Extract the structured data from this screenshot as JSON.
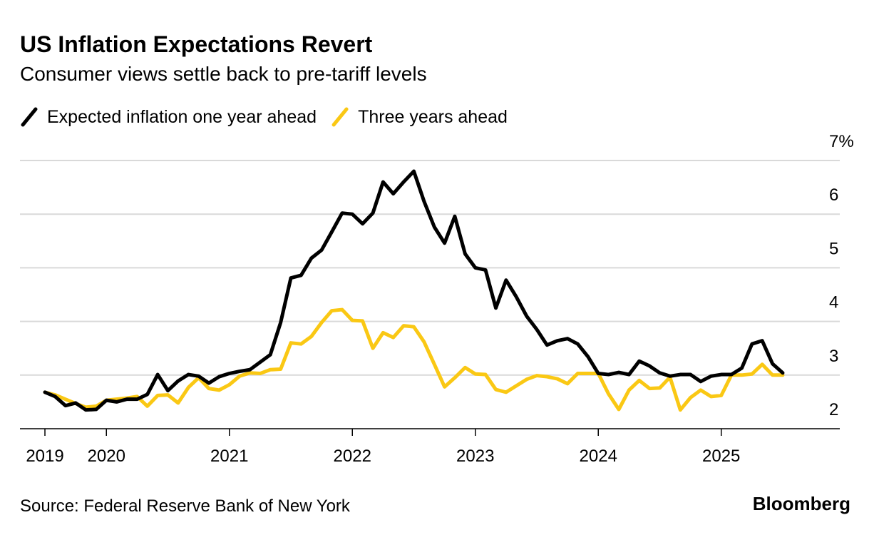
{
  "chart_data": {
    "type": "line",
    "title": "US Inflation Expectations Revert",
    "subtitle": "Consumer views settle back to pre-tariff levels",
    "source": "Source: Federal Reserve Bank of New York",
    "brand": "Bloomberg",
    "x": [
      2019.5,
      2019.583,
      2019.667,
      2019.75,
      2019.833,
      2019.917,
      2020,
      2020.083,
      2020.167,
      2020.25,
      2020.333,
      2020.417,
      2020.5,
      2020.583,
      2020.667,
      2020.75,
      2020.833,
      2020.917,
      2021,
      2021.083,
      2021.167,
      2021.25,
      2021.333,
      2021.417,
      2021.5,
      2021.583,
      2021.667,
      2021.75,
      2021.833,
      2021.917,
      2022,
      2022.083,
      2022.167,
      2022.25,
      2022.333,
      2022.417,
      2022.5,
      2022.583,
      2022.667,
      2022.75,
      2022.833,
      2022.917,
      2023,
      2023.083,
      2023.167,
      2023.25,
      2023.333,
      2023.417,
      2023.5,
      2023.583,
      2023.667,
      2023.75,
      2023.833,
      2023.917,
      2024,
      2024.083,
      2024.167,
      2024.25,
      2024.333,
      2024.417,
      2024.5,
      2024.583,
      2024.667,
      2024.75,
      2024.833,
      2024.917,
      2025,
      2025.083,
      2025.167,
      2025.25,
      2025.333,
      2025.417,
      2025.5
    ],
    "series": [
      {
        "name": "Expected inflation one year ahead",
        "color": "#000000",
        "values": [
          2.68,
          2.6,
          2.43,
          2.48,
          2.35,
          2.36,
          2.53,
          2.5,
          2.55,
          2.55,
          2.64,
          3.01,
          2.71,
          2.89,
          3.01,
          2.98,
          2.85,
          2.97,
          3.03,
          3.07,
          3.1,
          3.24,
          3.38,
          3.98,
          4.81,
          4.86,
          5.18,
          5.33,
          5.67,
          6.02,
          6.0,
          5.82,
          6.02,
          6.6,
          6.38,
          6.6,
          6.8,
          6.24,
          5.76,
          5.46,
          5.96,
          5.26,
          5.0,
          4.96,
          4.25,
          4.77,
          4.46,
          4.1,
          3.85,
          3.56,
          3.64,
          3.68,
          3.58,
          3.34,
          3.03,
          3.01,
          3.05,
          3.01,
          3.26,
          3.17,
          3.04,
          2.98,
          3.01,
          3.01,
          2.88,
          2.98,
          3.01,
          3.01,
          3.13,
          3.58,
          3.64,
          3.21,
          3.04
        ]
      },
      {
        "name": "Three years ahead",
        "color": "#fac814",
        "values": [
          2.68,
          2.63,
          2.55,
          2.47,
          2.4,
          2.42,
          2.53,
          2.55,
          2.57,
          2.6,
          2.42,
          2.62,
          2.63,
          2.48,
          2.77,
          2.95,
          2.75,
          2.72,
          2.82,
          2.98,
          3.04,
          3.03,
          3.1,
          3.11,
          3.6,
          3.58,
          3.72,
          3.98,
          4.2,
          4.22,
          4.02,
          4.01,
          3.5,
          3.79,
          3.7,
          3.92,
          3.9,
          3.62,
          3.2,
          2.78,
          2.95,
          3.14,
          3.02,
          3.01,
          2.73,
          2.68,
          2.8,
          2.92,
          2.99,
          2.97,
          2.93,
          2.84,
          3.03,
          3.03,
          3.03,
          2.65,
          2.36,
          2.72,
          2.9,
          2.75,
          2.76,
          2.96,
          2.35,
          2.58,
          2.72,
          2.6,
          2.62,
          3.0,
          3.0,
          3.02,
          3.2,
          3.0,
          3.0
        ]
      }
    ],
    "xlim": [
      2019.297,
      2025.964
    ],
    "xticks": [
      {
        "value": 2019.5,
        "label": "2019"
      },
      {
        "value": 2020,
        "label": "2020"
      },
      {
        "value": 2021,
        "label": "2021"
      },
      {
        "value": 2022,
        "label": "2022"
      },
      {
        "value": 2023,
        "label": "2023"
      },
      {
        "value": 2024,
        "label": "2024"
      },
      {
        "value": 2025,
        "label": "2025"
      }
    ],
    "ylim": [
      2,
      7
    ],
    "yticks": [
      2,
      3,
      4,
      5,
      6,
      {
        "value": 7,
        "label": "7%"
      }
    ],
    "grid": true
  }
}
